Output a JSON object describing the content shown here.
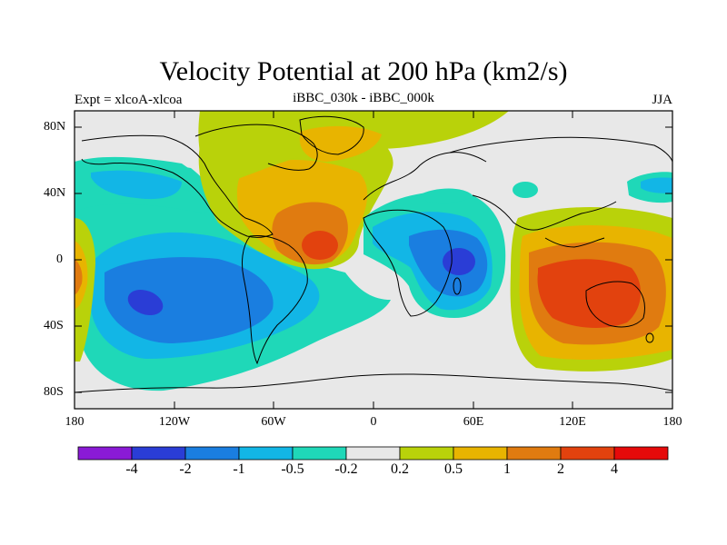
{
  "header": {
    "title": "Velocity Potential at 200 hPa (km2/s)",
    "left": "Expt = xlcoA-xlcoa",
    "center": "iBBC_030k - iBBC_000k",
    "right": "JJA"
  },
  "axes": {
    "lat_ticks": [
      "80N",
      "40N",
      "0",
      "40S",
      "80S"
    ],
    "lon_ticks": [
      "180",
      "120W",
      "60W",
      "0",
      "60E",
      "120E",
      "180"
    ]
  },
  "colorbar": {
    "colors": [
      "#8a1ad6",
      "#2a3dd6",
      "#1a7ee0",
      "#12b6e6",
      "#1fd8b8",
      "#e8e8e8",
      "#b9d20a",
      "#e8b400",
      "#e07b10",
      "#e2420e",
      "#e60a0a"
    ],
    "labels": [
      "-4",
      "-2",
      "-1",
      "-0.5",
      "-0.2",
      "0.2",
      "0.5",
      "1",
      "2",
      "4"
    ]
  }
}
